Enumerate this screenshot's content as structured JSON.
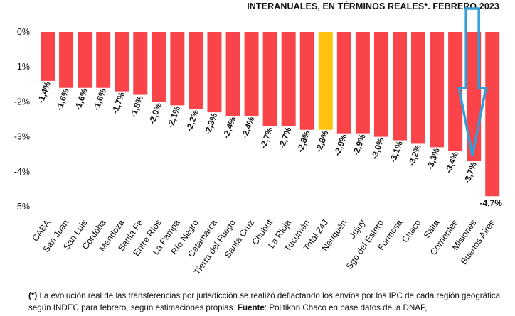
{
  "chart_data": {
    "type": "bar",
    "title": "INTERANUALES, EN TÉRMINOS REALES*. FEBRERO 2023",
    "xlabel": "",
    "ylabel": "",
    "ylim": [
      -5,
      0
    ],
    "yticks": [
      0,
      -1,
      -2,
      -3,
      -4,
      -5
    ],
    "ytick_labels": [
      "0%",
      "-1%",
      "-2%",
      "-3%",
      "-4%",
      "-5%"
    ],
    "grid": false,
    "categories": [
      "CABA",
      "San Juan",
      "San Luis",
      "Córdoba",
      "Mendoza",
      "Santa Fe",
      "Entre Ríos",
      "La Pampa",
      "Río Negro",
      "Catamarca",
      "Tierra del Fuego",
      "Santa Cruz",
      "Chubut",
      "La Rioja",
      "Tucumán",
      "Total 24J",
      "Neuquén",
      "Jujuy",
      "Sgo del Estero",
      "Formosa",
      "Chaco",
      "Salta",
      "Corrientes",
      "Misiones",
      "Buenos Aires"
    ],
    "values": [
      -1.4,
      -1.6,
      -1.6,
      -1.6,
      -1.7,
      -1.8,
      -2.0,
      -2.1,
      -2.2,
      -2.3,
      -2.4,
      -2.4,
      -2.7,
      -2.7,
      -2.8,
      -2.8,
      -2.9,
      -2.9,
      -3.0,
      -3.1,
      -3.2,
      -3.3,
      -3.4,
      -3.7,
      -4.7
    ],
    "value_labels": [
      "-1,4%",
      "-1,6%",
      "-1,6%",
      "-1,6%",
      "-1,7%",
      "-1,8%",
      "-2,0%",
      "-2,1%",
      "-2,2%",
      "-2,3%",
      "-2,4%",
      "-2,4%",
      "-2,7%",
      "-2,7%",
      "-2,8%",
      "-2,8%",
      "-2,9%",
      "-2,9%",
      "-3,0%",
      "-3,1%",
      "-3,2%",
      "-3,3%",
      "-3,4%",
      "-3,7%",
      "-4,7%"
    ],
    "highlight_category": "Total 24J",
    "annotation": {
      "type": "arrow",
      "target": "Misiones",
      "direction": "down"
    }
  },
  "colors": {
    "bar": "#f94449",
    "highlight": "#ffc20e",
    "arrow": "#2e9fd8",
    "axis": "#444444",
    "text": "#111111"
  },
  "footnote": {
    "mark": "(*)",
    "text": " La evolución real de las transferencias por jurisdicción se realizó deflactando los envíos por los IPC de cada región geográfica según INDEC para febrero, según estimaciones propias. ",
    "source_label": "Fuente",
    "source_text": ": Politikon Chaco en base datos de la DNAP,"
  }
}
